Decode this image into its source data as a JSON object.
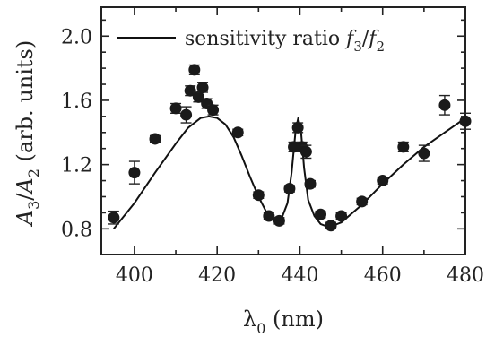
{
  "chart_data": {
    "type": "scatter",
    "xlabel": {
      "main": "λ",
      "sub": "0",
      "rest": " (nm)"
    },
    "ylabel": {
      "a": "A",
      "a_sub": "3",
      "slash": "/",
      "b": "A",
      "b_sub": "2",
      "rest": " (arb. units)"
    },
    "xlim": [
      392,
      480
    ],
    "ylim": [
      0.64,
      2.18
    ],
    "xticks": [
      400,
      420,
      440,
      460,
      480
    ],
    "yticks": [
      0.8,
      1.2,
      1.6,
      2.0
    ],
    "x_tick_labels": [
      "400",
      "420",
      "440",
      "460",
      "480"
    ],
    "y_tick_labels": [
      "0.8",
      "1.2",
      "1.6",
      "2.0"
    ],
    "legend": {
      "placement": "top",
      "text": "sensitivity ratio ",
      "f3": "f",
      "f3_sub": "3",
      "slash": "/",
      "f2": "f",
      "f2_sub": "2"
    },
    "series": [
      {
        "kind": "markers",
        "points": [
          {
            "x": 395,
            "y": 0.87,
            "err": 0.04
          },
          {
            "x": 400,
            "y": 1.15,
            "err": 0.07
          },
          {
            "x": 405,
            "y": 1.36,
            "err": 0.02
          },
          {
            "x": 410,
            "y": 1.55,
            "err": 0.03
          },
          {
            "x": 412.5,
            "y": 1.51,
            "err": 0.05
          },
          {
            "x": 413.5,
            "y": 1.66,
            "err": 0.03
          },
          {
            "x": 414.5,
            "y": 1.79,
            "err": 0.03
          },
          {
            "x": 415.5,
            "y": 1.62,
            "err": 0.03
          },
          {
            "x": 416.5,
            "y": 1.68,
            "err": 0.03
          },
          {
            "x": 417.5,
            "y": 1.58,
            "err": 0.03
          },
          {
            "x": 419,
            "y": 1.54,
            "err": 0.03
          },
          {
            "x": 425,
            "y": 1.4,
            "err": 0.02
          },
          {
            "x": 430,
            "y": 1.01,
            "err": 0.02
          },
          {
            "x": 432.5,
            "y": 0.88,
            "err": 0.02
          },
          {
            "x": 435,
            "y": 0.85,
            "err": 0.02
          },
          {
            "x": 437.5,
            "y": 1.05,
            "err": 0.02
          },
          {
            "x": 438.5,
            "y": 1.31,
            "err": 0.03
          },
          {
            "x": 439.5,
            "y": 1.43,
            "err": 0.03
          },
          {
            "x": 440.5,
            "y": 1.31,
            "err": 0.03
          },
          {
            "x": 441.5,
            "y": 1.28,
            "err": 0.04
          },
          {
            "x": 442.5,
            "y": 1.08,
            "err": 0.02
          },
          {
            "x": 445,
            "y": 0.89,
            "err": 0.02
          },
          {
            "x": 447.5,
            "y": 0.82,
            "err": 0.02
          },
          {
            "x": 450,
            "y": 0.88,
            "err": 0.02
          },
          {
            "x": 455,
            "y": 0.97,
            "err": 0.02
          },
          {
            "x": 460,
            "y": 1.1,
            "err": 0.02
          },
          {
            "x": 465,
            "y": 1.31,
            "err": 0.03
          },
          {
            "x": 470,
            "y": 1.27,
            "err": 0.05
          },
          {
            "x": 475,
            "y": 1.57,
            "err": 0.06
          },
          {
            "x": 480,
            "y": 1.47,
            "err": 0.05
          }
        ]
      },
      {
        "kind": "line",
        "points": [
          {
            "x": 395,
            "y": 0.8
          },
          {
            "x": 400,
            "y": 0.96
          },
          {
            "x": 405,
            "y": 1.15
          },
          {
            "x": 410,
            "y": 1.33
          },
          {
            "x": 413,
            "y": 1.43
          },
          {
            "x": 416,
            "y": 1.49
          },
          {
            "x": 418,
            "y": 1.5
          },
          {
            "x": 420,
            "y": 1.49
          },
          {
            "x": 422,
            "y": 1.45
          },
          {
            "x": 424,
            "y": 1.37
          },
          {
            "x": 426,
            "y": 1.25
          },
          {
            "x": 428,
            "y": 1.12
          },
          {
            "x": 430,
            "y": 1.0
          },
          {
            "x": 432,
            "y": 0.9
          },
          {
            "x": 434,
            "y": 0.85
          },
          {
            "x": 435.5,
            "y": 0.86
          },
          {
            "x": 437,
            "y": 0.96
          },
          {
            "x": 438,
            "y": 1.15
          },
          {
            "x": 439,
            "y": 1.42
          },
          {
            "x": 439.6,
            "y": 1.49
          },
          {
            "x": 440.3,
            "y": 1.4
          },
          {
            "x": 441,
            "y": 1.18
          },
          {
            "x": 442,
            "y": 0.98
          },
          {
            "x": 443.5,
            "y": 0.88
          },
          {
            "x": 445,
            "y": 0.83
          },
          {
            "x": 447,
            "y": 0.81
          },
          {
            "x": 450,
            "y": 0.84
          },
          {
            "x": 455,
            "y": 0.95
          },
          {
            "x": 460,
            "y": 1.08
          },
          {
            "x": 465,
            "y": 1.2
          },
          {
            "x": 470,
            "y": 1.31
          },
          {
            "x": 475,
            "y": 1.4
          },
          {
            "x": 480,
            "y": 1.49
          }
        ]
      }
    ]
  }
}
